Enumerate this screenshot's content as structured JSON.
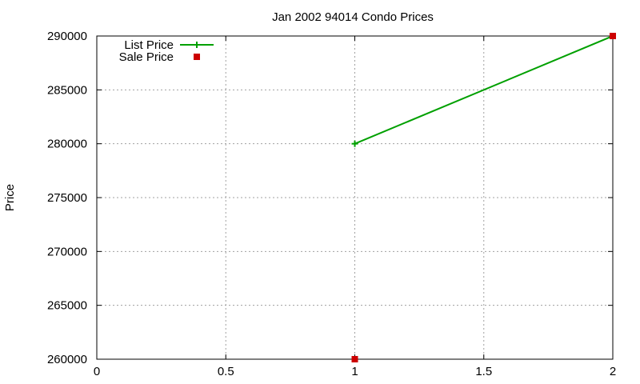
{
  "chart_data": {
    "type": "line",
    "title": "Jan 2002 94014 Condo Prices",
    "xlabel": "",
    "ylabel": "Price",
    "xlim": [
      0,
      2
    ],
    "ylim": [
      260000,
      290000
    ],
    "x_ticks": [
      0,
      0.5,
      1,
      1.5,
      2
    ],
    "y_ticks": [
      260000,
      265000,
      270000,
      275000,
      280000,
      285000,
      290000
    ],
    "grid": true,
    "legend_position": "top-left",
    "series": [
      {
        "name": "List Price",
        "style": "linespoints",
        "marker": "plus",
        "color": "#00a000",
        "points": [
          {
            "x": 1,
            "y": 280000
          },
          {
            "x": 2,
            "y": 290000
          }
        ]
      },
      {
        "name": "Sale Price",
        "style": "points",
        "marker": "square",
        "color": "#cc0000",
        "points": [
          {
            "x": 1,
            "y": 260000
          },
          {
            "x": 2,
            "y": 290000
          }
        ]
      }
    ]
  }
}
